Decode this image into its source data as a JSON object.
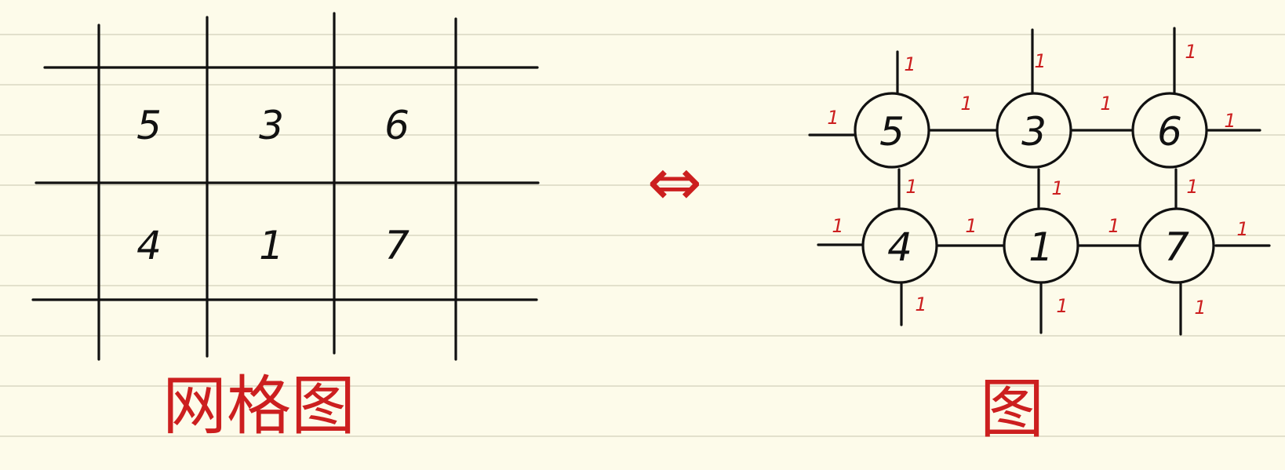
{
  "grid": {
    "rows": [
      [
        "5",
        "3",
        "6"
      ],
      [
        "4",
        "1",
        "7"
      ]
    ],
    "caption": "网格图"
  },
  "equivalence_symbol": "⇔",
  "graph": {
    "nodes": [
      {
        "label": "5"
      },
      {
        "label": "3"
      },
      {
        "label": "6"
      },
      {
        "label": "4"
      },
      {
        "label": "1"
      },
      {
        "label": "7"
      }
    ],
    "edge_weight": "1",
    "caption": "图"
  },
  "colors": {
    "ink": "#111111",
    "annotation": "#cc1f1f",
    "paper": "#fdfbea",
    "ruled_line": "#e2e0cc"
  }
}
